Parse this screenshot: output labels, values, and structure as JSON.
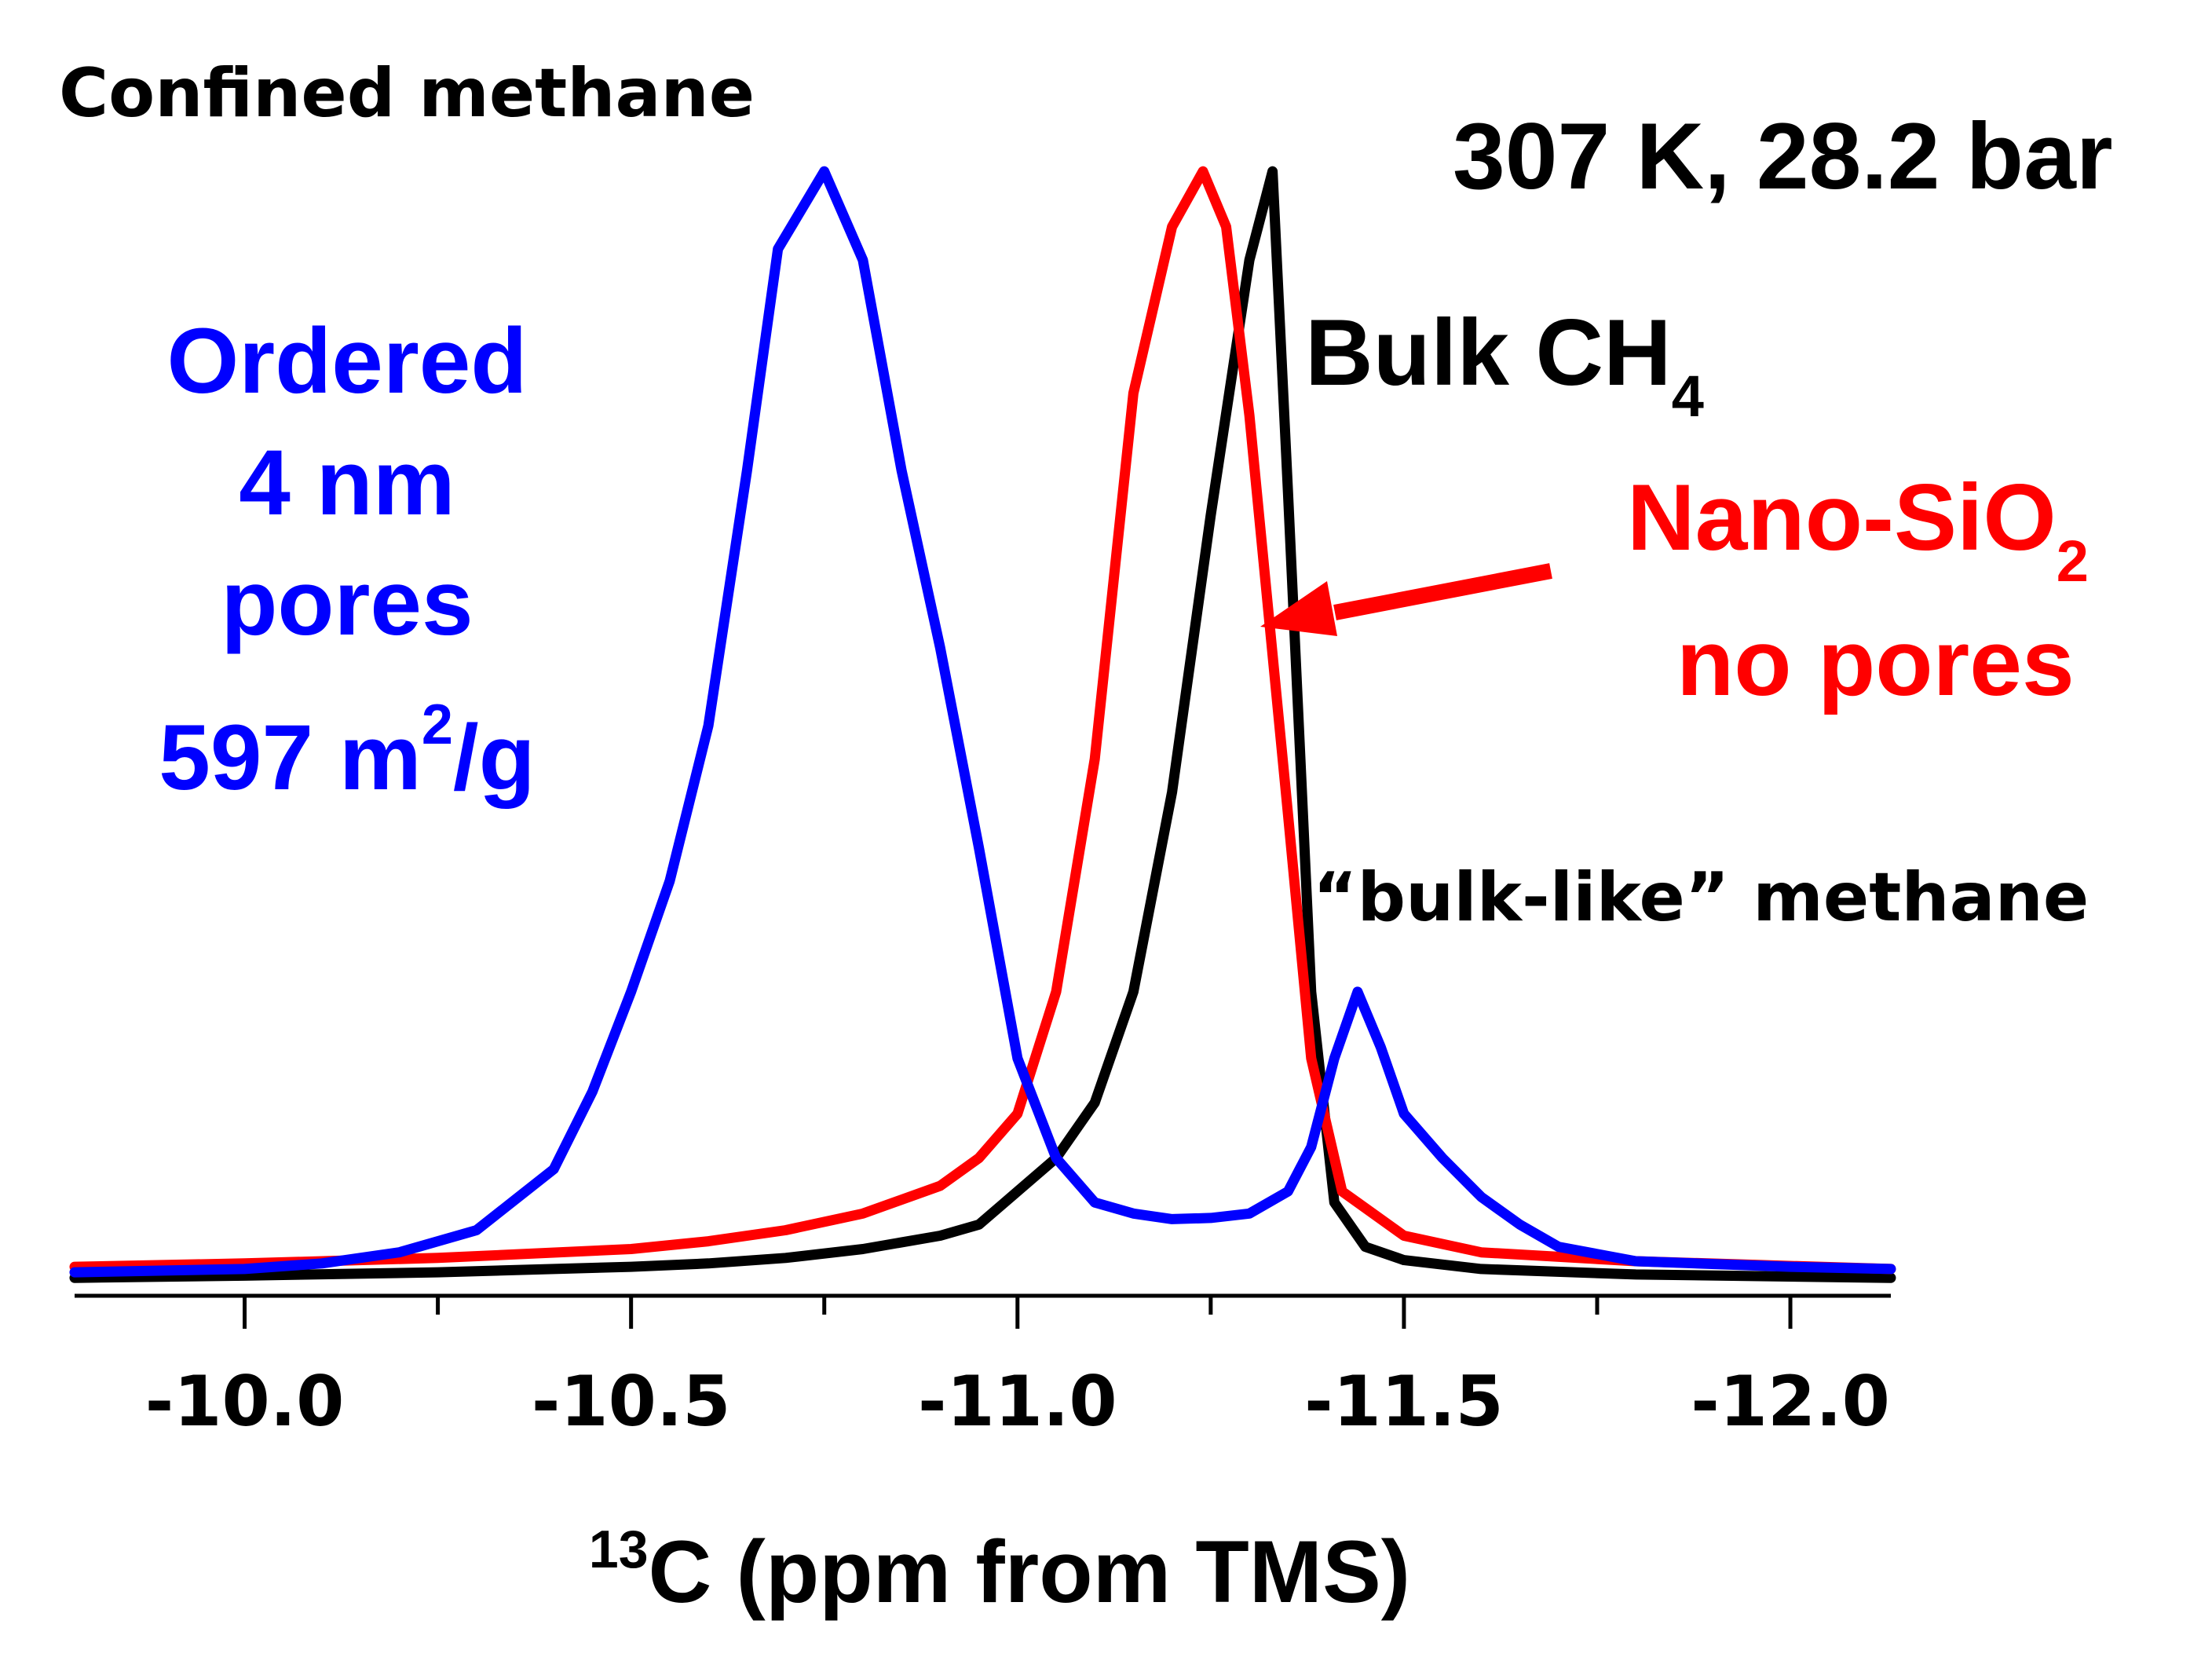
{
  "chart_data": {
    "type": "line",
    "title": "",
    "xlabel": {
      "sup": "13",
      "text": "C (ppm from TMS)"
    },
    "ylabel": "",
    "x_axis": {
      "reversed": true,
      "xlim": [
        -9.78,
        -12.13
      ],
      "ticks": [
        {
          "value": -10.0,
          "label": "-10.0"
        },
        {
          "value": -10.5,
          "label": "-10.5"
        },
        {
          "value": -11.0,
          "label": "-11.0"
        },
        {
          "value": -11.5,
          "label": "-11.5"
        },
        {
          "value": -12.0,
          "label": "-12.0"
        }
      ],
      "minor_ticks": [
        -10.25,
        -10.75,
        -11.25,
        -11.75
      ]
    },
    "ylim": [
      0,
      1.02
    ],
    "grid": false,
    "series": [
      {
        "name": "Bulk CH4",
        "color": "#000000",
        "points": [
          [
            -9.78,
            0.002
          ],
          [
            -10.0,
            0.004
          ],
          [
            -10.25,
            0.007
          ],
          [
            -10.5,
            0.012
          ],
          [
            -10.6,
            0.015
          ],
          [
            -10.7,
            0.02
          ],
          [
            -10.8,
            0.028
          ],
          [
            -10.9,
            0.04
          ],
          [
            -10.95,
            0.05
          ],
          [
            -11.0,
            0.08
          ],
          [
            -11.05,
            0.11
          ],
          [
            -11.1,
            0.16
          ],
          [
            -11.15,
            0.26
          ],
          [
            -11.2,
            0.44
          ],
          [
            -11.25,
            0.69
          ],
          [
            -11.3,
            0.92
          ],
          [
            -11.33,
            1.0
          ],
          [
            -11.35,
            0.71
          ],
          [
            -11.38,
            0.26
          ],
          [
            -11.41,
            0.07
          ],
          [
            -11.45,
            0.03
          ],
          [
            -11.5,
            0.018
          ],
          [
            -11.6,
            0.01
          ],
          [
            -11.8,
            0.005
          ],
          [
            -12.13,
            0.002
          ]
        ]
      },
      {
        "name": "Nano-SiO2 no pores",
        "color": "#ff0000",
        "points": [
          [
            -9.78,
            0.012
          ],
          [
            -10.0,
            0.015
          ],
          [
            -10.25,
            0.02
          ],
          [
            -10.5,
            0.028
          ],
          [
            -10.6,
            0.035
          ],
          [
            -10.7,
            0.045
          ],
          [
            -10.8,
            0.06
          ],
          [
            -10.9,
            0.085
          ],
          [
            -10.95,
            0.11
          ],
          [
            -11.0,
            0.15
          ],
          [
            -11.05,
            0.26
          ],
          [
            -11.1,
            0.47
          ],
          [
            -11.15,
            0.8
          ],
          [
            -11.2,
            0.95
          ],
          [
            -11.24,
            1.0
          ],
          [
            -11.27,
            0.95
          ],
          [
            -11.3,
            0.78
          ],
          [
            -11.35,
            0.42
          ],
          [
            -11.38,
            0.2
          ],
          [
            -11.42,
            0.08
          ],
          [
            -11.5,
            0.04
          ],
          [
            -11.6,
            0.025
          ],
          [
            -11.8,
            0.017
          ],
          [
            -12.13,
            0.01
          ]
        ]
      },
      {
        "name": "Ordered 4 nm pores",
        "color": "#0000ff",
        "points": [
          [
            -9.78,
            0.007
          ],
          [
            -10.0,
            0.01
          ],
          [
            -10.1,
            0.015
          ],
          [
            -10.2,
            0.025
          ],
          [
            -10.3,
            0.045
          ],
          [
            -10.4,
            0.1
          ],
          [
            -10.45,
            0.17
          ],
          [
            -10.5,
            0.26
          ],
          [
            -10.55,
            0.36
          ],
          [
            -10.6,
            0.5
          ],
          [
            -10.65,
            0.73
          ],
          [
            -10.69,
            0.93
          ],
          [
            -10.75,
            1.0
          ],
          [
            -10.8,
            0.92
          ],
          [
            -10.85,
            0.73
          ],
          [
            -10.9,
            0.57
          ],
          [
            -10.95,
            0.39
          ],
          [
            -11.0,
            0.2
          ],
          [
            -11.05,
            0.11
          ],
          [
            -11.1,
            0.07
          ],
          [
            -11.15,
            0.06
          ],
          [
            -11.2,
            0.055
          ],
          [
            -11.25,
            0.056
          ],
          [
            -11.3,
            0.06
          ],
          [
            -11.35,
            0.08
          ],
          [
            -11.38,
            0.12
          ],
          [
            -11.41,
            0.2
          ],
          [
            -11.44,
            0.26
          ],
          [
            -11.47,
            0.21
          ],
          [
            -11.5,
            0.15
          ],
          [
            -11.55,
            0.11
          ],
          [
            -11.6,
            0.075
          ],
          [
            -11.65,
            0.05
          ],
          [
            -11.7,
            0.03
          ],
          [
            -11.8,
            0.017
          ],
          [
            -12.0,
            0.012
          ],
          [
            -12.13,
            0.01
          ]
        ]
      }
    ],
    "annotations": {
      "confined": "Confined methane",
      "conditions": "307 K, 28.2 bar",
      "bulk_main": "Bulk CH",
      "bulk_sub": "4",
      "nano_line1_main": "Nano-SiO",
      "nano_line1_sub": "2",
      "nano_line2": "no pores",
      "ordered_line1": "Ordered",
      "ordered_line2": "4 nm",
      "ordered_line3": "pores",
      "ordered_line4_main": "597 m",
      "ordered_line4_sup": "2",
      "ordered_line4_rest": "/g",
      "bulk_like": "“bulk-like” methane"
    },
    "colors": {
      "blue": "#0000ff",
      "red": "#ff0000",
      "black": "#000000"
    }
  }
}
